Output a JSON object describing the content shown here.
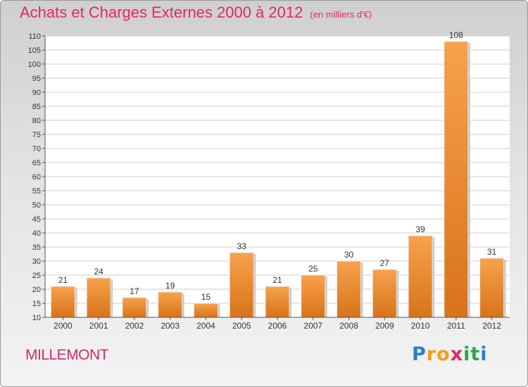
{
  "title": "Achats et Charges Externes 2000 à 2012",
  "unit_note": "(en milliers d'€)",
  "commune": "MILLEMONT",
  "logo": {
    "letters": [
      "P",
      "r",
      "o",
      "x",
      "i",
      "t",
      "i"
    ],
    "colors": [
      "#2a7fc8",
      "#f0a020",
      "#f0a020",
      "#e4286c",
      "#2aa84a",
      "#2aa84a",
      "#2a7fc8"
    ]
  },
  "colors": {
    "title": "#e0286c",
    "bar": "#f0963a",
    "bar_dark": "#d8731a",
    "grid": "#cfcfcf"
  },
  "chart_data": {
    "type": "bar",
    "title": "Achats et Charges Externes 2000 à 2012",
    "subtitle": "(en milliers d'€)",
    "xlabel": "",
    "ylabel": "",
    "ylim": [
      10,
      110
    ],
    "yticks": [
      10,
      15,
      20,
      25,
      30,
      35,
      40,
      45,
      50,
      55,
      60,
      65,
      70,
      75,
      80,
      85,
      90,
      95,
      100,
      105,
      110
    ],
    "grid": true,
    "categories": [
      "2000",
      "2001",
      "2002",
      "2003",
      "2004",
      "2005",
      "2006",
      "2007",
      "2008",
      "2009",
      "2010",
      "2011",
      "2012"
    ],
    "values": [
      21,
      24,
      17,
      19,
      15,
      33,
      21,
      25,
      30,
      27,
      39,
      108,
      31
    ]
  }
}
